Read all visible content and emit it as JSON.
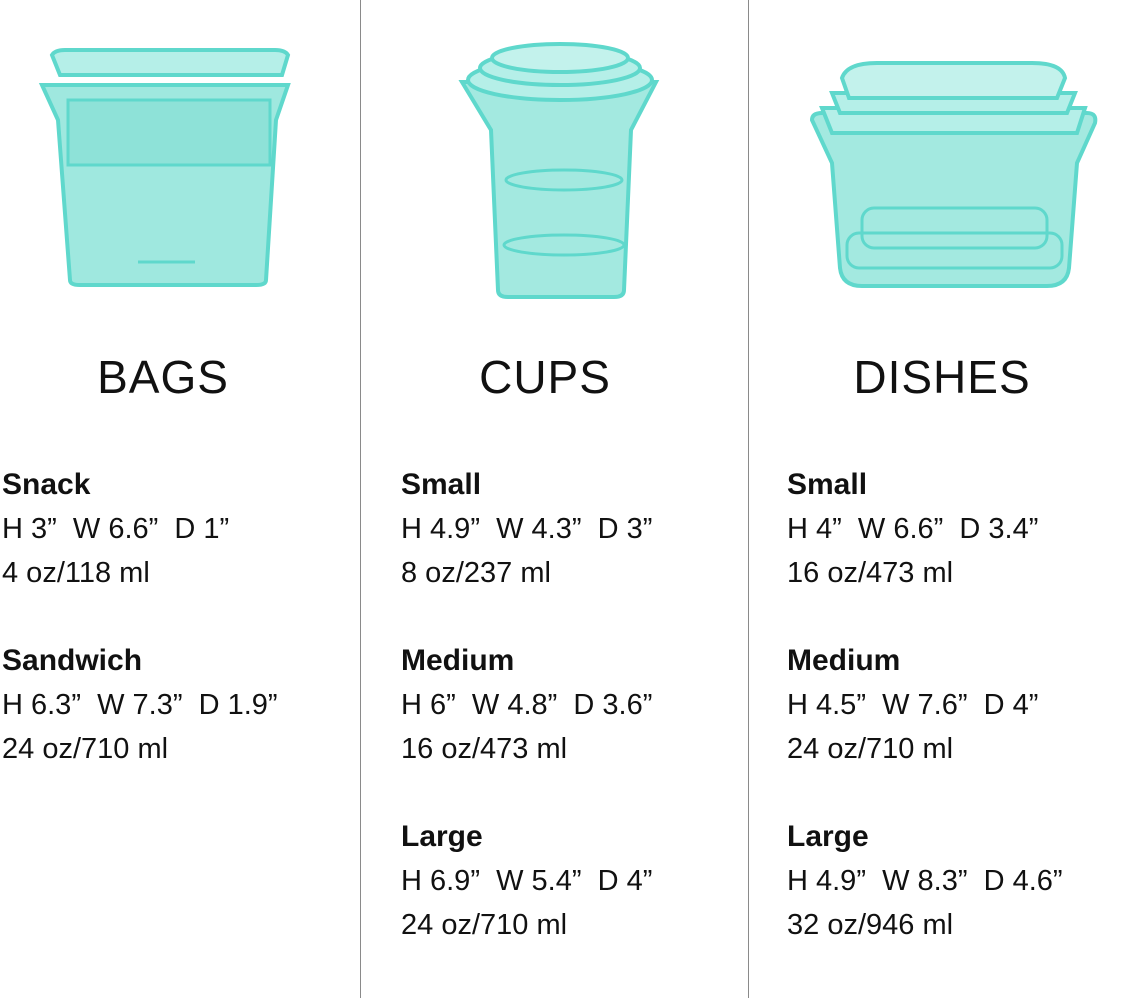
{
  "colors": {
    "product": "#5fd8cc",
    "divider": "#8a8a8a"
  },
  "columns": [
    {
      "title": "BAGS",
      "image": "stacked-bags",
      "items": [
        {
          "name": "Snack",
          "dims": "H 3”  W 6.6”  D 1”",
          "volume": "4 oz/118 ml"
        },
        {
          "name": "Sandwich",
          "dims": "H 6.3”  W 7.3”  D 1.9”",
          "volume": "24 oz/710 ml"
        }
      ]
    },
    {
      "title": "CUPS",
      "image": "nested-cups",
      "items": [
        {
          "name": "Small",
          "dims": "H 4.9”  W 4.3”  D 3”",
          "volume": "8 oz/237 ml"
        },
        {
          "name": "Medium",
          "dims": "H 6”  W 4.8”  D 3.6”",
          "volume": "16 oz/473 ml"
        },
        {
          "name": "Large",
          "dims": "H 6.9”  W 5.4”  D 4”",
          "volume": "24 oz/710 ml"
        }
      ]
    },
    {
      "title": "DISHES",
      "image": "nested-dishes",
      "items": [
        {
          "name": "Small",
          "dims": "H 4”  W 6.6”  D 3.4”",
          "volume": "16 oz/473 ml"
        },
        {
          "name": "Medium",
          "dims": "H 4.5”  W 7.6”  D 4”",
          "volume": "24 oz/710 ml"
        },
        {
          "name": "Large",
          "dims": "H 4.9”  W 8.3”  D 4.6”",
          "volume": "32 oz/946 ml"
        }
      ]
    }
  ]
}
